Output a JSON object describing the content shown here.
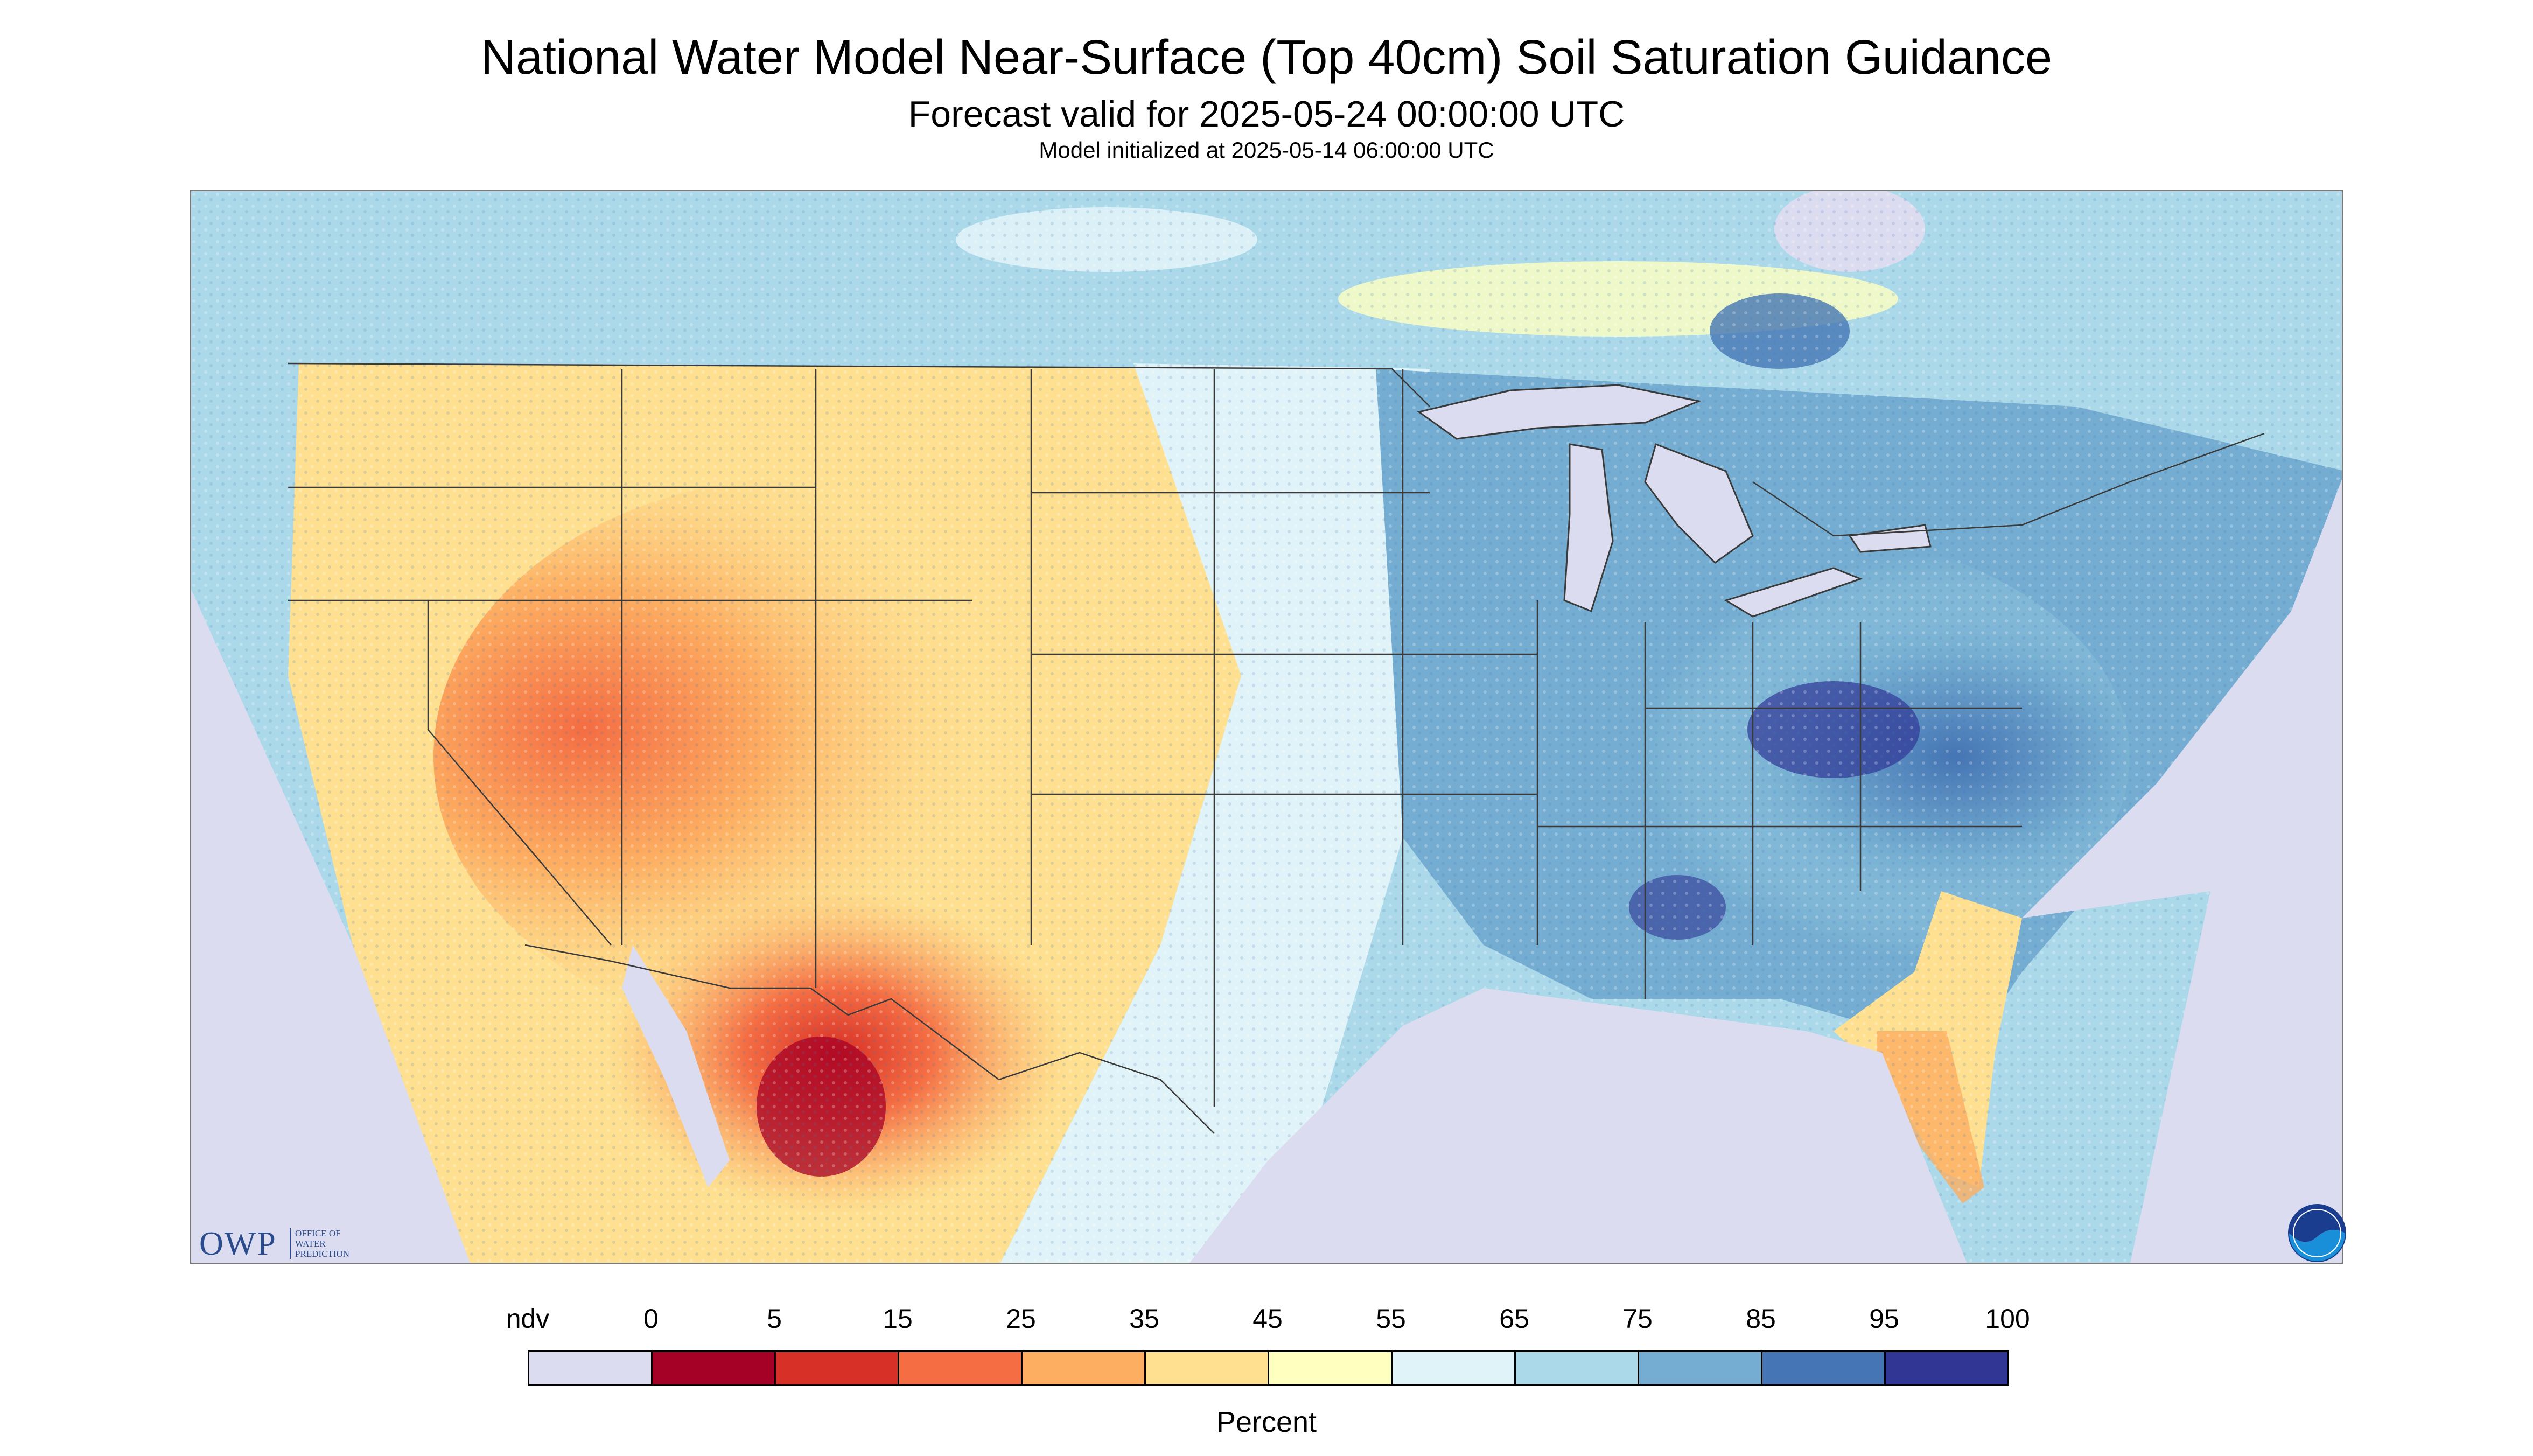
{
  "title": "National Water Model Near-Surface (Top 40cm) Soil Saturation Guidance",
  "subtitle": "Forecast valid for 2025-05-24 00:00:00 UTC",
  "init": "Model initialized at 2025-05-14 06:00:00 UTC",
  "logos": {
    "owp": "OWP",
    "owp_sub": "OFFICE OF WATER PREDICTION",
    "noaa": "NOAA"
  },
  "legend": {
    "unit": "Percent",
    "labels": [
      "ndv",
      "0",
      "5",
      "15",
      "25",
      "35",
      "45",
      "55",
      "65",
      "75",
      "85",
      "95",
      "100"
    ],
    "bins": [
      {
        "label": "ndv",
        "color": "#dcdcf0"
      },
      {
        "label": "0-5",
        "color": "#a50026"
      },
      {
        "label": "5-15",
        "color": "#d73027"
      },
      {
        "label": "15-25",
        "color": "#f46d43"
      },
      {
        "label": "25-35",
        "color": "#fdae61"
      },
      {
        "label": "35-45",
        "color": "#fee090"
      },
      {
        "label": "45-55",
        "color": "#ffffbf"
      },
      {
        "label": "55-65",
        "color": "#e0f3f8"
      },
      {
        "label": "65-75",
        "color": "#abd9e9"
      },
      {
        "label": "75-85",
        "color": "#74add1"
      },
      {
        "label": "85-95",
        "color": "#4575b4"
      },
      {
        "label": "95-100",
        "color": "#313695"
      }
    ]
  },
  "map_colors": {
    "background_ndv": "#dcdcf0",
    "water": "#dcdcf0",
    "borders": "#3a3a3a"
  }
}
